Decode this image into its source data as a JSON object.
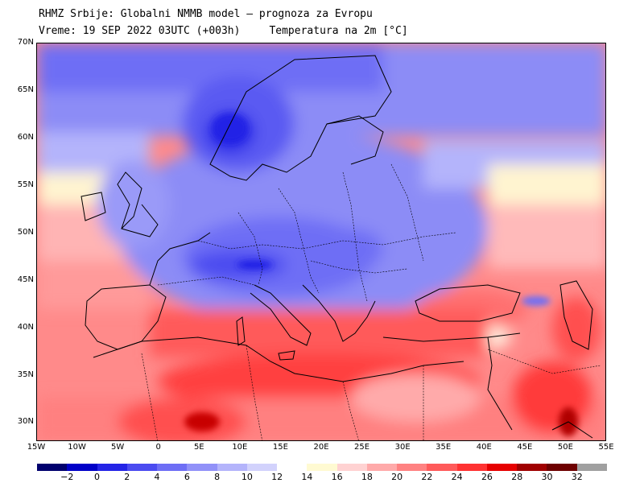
{
  "header": {
    "line1": "RHMZ Srbije: Globalni NMMB model — prognoza za Evropu",
    "line2_time": "Vreme: 19 SEP 2022 03UTC (+003h)",
    "line2_field": "Temperatura na 2m [°C]"
  },
  "map": {
    "lon_range": [
      -15,
      55
    ],
    "lat_range": [
      28,
      70
    ],
    "lat_labels": [
      "70N",
      "65N",
      "60N",
      "55N",
      "50N",
      "45N",
      "40N",
      "35N",
      "30N"
    ],
    "lat_values": [
      70,
      65,
      60,
      55,
      50,
      45,
      40,
      35,
      30
    ],
    "lon_labels": [
      "15W",
      "10W",
      "5W",
      "0",
      "5E",
      "10E",
      "15E",
      "20E",
      "25E",
      "30E",
      "35E",
      "40E",
      "45E",
      "50E",
      "55E"
    ],
    "lon_values": [
      -15,
      -10,
      -5,
      0,
      5,
      10,
      15,
      20,
      25,
      30,
      35,
      40,
      45,
      50,
      55
    ]
  },
  "legend": {
    "colors": [
      "#00006e",
      "#0000c8",
      "#2424e6",
      "#4b4bf0",
      "#6e6ef5",
      "#9191f8",
      "#b4b4fb",
      "#d2d2fc",
      "#ffffff",
      "#fffad2",
      "#ffd2d2",
      "#ffaaaa",
      "#ff8282",
      "#ff5a5a",
      "#ff3232",
      "#e60000",
      "#a00000",
      "#6e0000",
      "#a0a0a0"
    ],
    "ticks": [
      "−2",
      "0",
      "2",
      "4",
      "6",
      "8",
      "10",
      "12",
      "14",
      "16",
      "18",
      "20",
      "22",
      "24",
      "26",
      "28",
      "30",
      "32"
    ]
  }
}
